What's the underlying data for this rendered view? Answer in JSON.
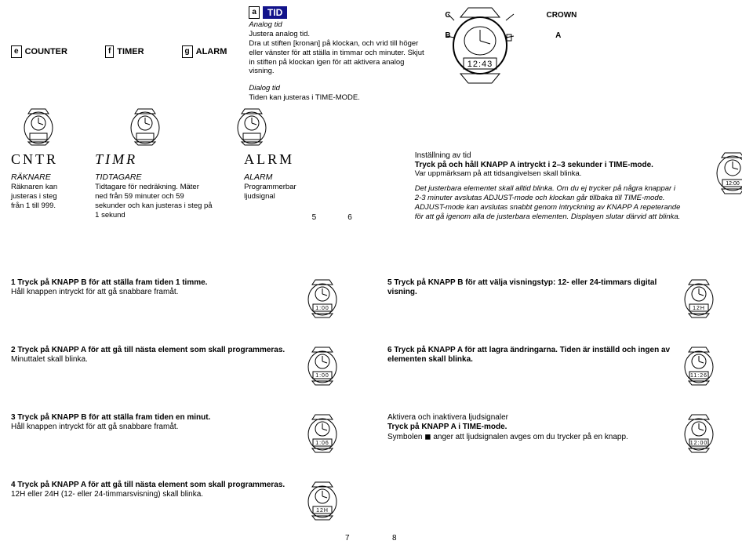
{
  "top": {
    "modes": [
      {
        "letter": "e",
        "label": "COUNTER"
      },
      {
        "letter": "f",
        "label": "TIMER"
      },
      {
        "letter": "g",
        "label": "ALARM"
      }
    ],
    "tid": {
      "letter": "a",
      "head": "TID",
      "analog_hd": "Analog tid",
      "analog_sub": "Justera analog tid.",
      "analog_body": "Dra ut stiften [kronan] på klockan, och vrid till höger eller vänster för att ställa in timmar och minuter. Skjut in stiften på klockan igen för att aktivera analog visning.",
      "dialog_hd": "Dialog tid",
      "dialog_body": "Tiden kan justeras i TIME-MODE."
    },
    "crown": {
      "C": "C",
      "B": "B",
      "A": "A",
      "CROWN": "CROWN",
      "display": "12:43"
    }
  },
  "sec2": {
    "cntr_disp": "CNTR",
    "timr_disp": "TIMR",
    "alrm_disp": "ALRM",
    "c1_hd": "RÄKNARE",
    "c1_bd": "Räknaren kan justeras i steg från 1 till 999.",
    "c2_hd": "TIDTAGARE",
    "c2_bd": "Tidtagare för nedräkning. Mäter ned från 59 minuter och 59 sekunder och kan justeras i steg på 1 sekund",
    "c3_hd": "ALARM",
    "c3_bd": "Programmerbar ljudsignal",
    "pg5": "5",
    "pg6": "6",
    "instr_hd": "Inställning av tid",
    "instr_b1": "Tryck på och håll KNAPP A intryckt i 2–3 sekunder i TIME-mode.",
    "instr_l1": "Var uppmärksam på att tidsangivelsen skall blinka.",
    "instr_body": "Det justerbara elementet skall alltid blinka. Om du ej trycker på några knappar i 2-3 minuter avslutas ADJUST-mode och klockan går tillbaka till TIME-mode. ADJUST-mode kan avslutas snabbt genom intryckning av KNAPP A repeterande för att gå igenom alla de justerbara elementen. Displayen slutar därvid att blinka.",
    "instr_disp": "12:00"
  },
  "steps_left": [
    {
      "bold": "1 Tryck på KNAPP B för att ställa fram tiden 1 timme.",
      "plain": "Håll knappen intryckt för att gå snabbare framåt.",
      "disp": "1:00"
    },
    {
      "bold": "2 Tryck på KNAPP A för att gå till nästa element som skall programmeras.",
      "plain": "Minuttalet skall blinka.",
      "disp": "1:00"
    },
    {
      "bold": "3 Tryck på KNAPP B för att ställa fram tiden en minut.",
      "plain": "Håll knappen intryckt för att gå snabbare framåt.",
      "disp": "1:06"
    },
    {
      "bold": "4 Tryck på KNAPP A för att gå till nästa element som skall programmeras.",
      "plain": "12H eller 24H (12- eller 24-timmarsvisning) skall blinka.",
      "disp": "12H"
    }
  ],
  "steps_right": [
    {
      "bold": "5 Tryck på KNAPP B för att välja visningstyp: 12- eller 24-timmars digital visning.",
      "plain": "",
      "disp": "12H"
    },
    {
      "bold": "6 Tryck på KNAPP A för att lagra ändringarna. Tiden är inställd och ingen av elementen skall blinka.",
      "plain": "",
      "disp": "11:26"
    },
    {
      "bold": "Tryck på KNAPP A i TIME-mode.",
      "plain": "Symbolen ◼ anger att ljudsignalen avges om du trycker på en knapp.",
      "hd": "Aktivera och inaktivera ljudsignaler",
      "disp": "12:00"
    }
  ],
  "pg7": "7",
  "pg8": "8"
}
